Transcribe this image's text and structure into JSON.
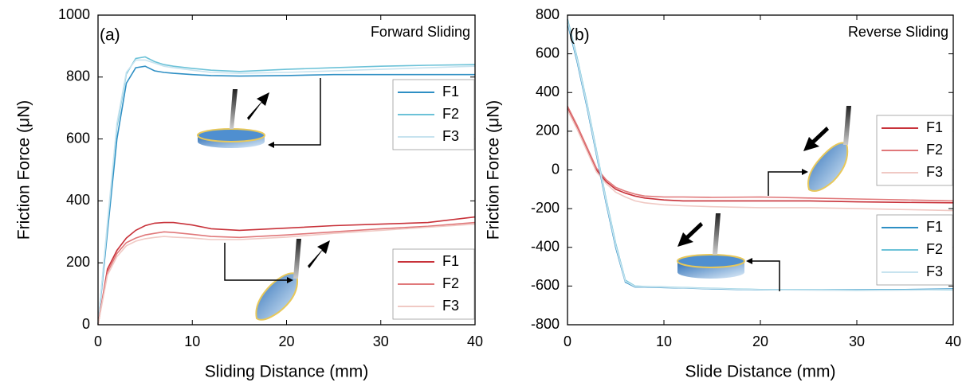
{
  "chart_data": [
    {
      "type": "line",
      "panel_label": "(a)",
      "title": "Forward Sliding",
      "x_label": "Sliding Distance (mm)",
      "y_label": "Friction Force (μN)",
      "xlim": [
        0,
        40
      ],
      "xticks": [
        0,
        10,
        20,
        30,
        40
      ],
      "ylim": [
        0,
        1000
      ],
      "yticks": [
        0,
        200,
        400,
        600,
        800,
        1000
      ],
      "x": [
        0,
        1,
        2,
        3,
        4,
        5,
        6,
        7,
        8,
        10,
        12,
        15,
        20,
        25,
        30,
        35,
        40
      ],
      "series": [
        {
          "name": "F1",
          "color": "#2e8fc4",
          "values": [
            0,
            300,
            600,
            780,
            830,
            835,
            820,
            815,
            812,
            808,
            805,
            803,
            805,
            808,
            808,
            808,
            808
          ]
        },
        {
          "name": "F2",
          "color": "#6cc2d8",
          "values": [
            0,
            320,
            640,
            810,
            860,
            865,
            850,
            840,
            835,
            828,
            822,
            818,
            825,
            830,
            835,
            838,
            840
          ]
        },
        {
          "name": "F3",
          "color": "#c7e3ef",
          "values": [
            0,
            330,
            650,
            815,
            855,
            855,
            845,
            835,
            830,
            822,
            815,
            812,
            815,
            820,
            825,
            830,
            835
          ]
        },
        {
          "name": "F1",
          "color": "#c8323a",
          "values": [
            0,
            180,
            240,
            280,
            305,
            320,
            328,
            330,
            330,
            322,
            310,
            305,
            312,
            320,
            325,
            330,
            348
          ]
        },
        {
          "name": "F2",
          "color": "#e0787a",
          "values": [
            0,
            170,
            230,
            265,
            280,
            290,
            295,
            300,
            298,
            292,
            285,
            282,
            290,
            300,
            310,
            318,
            330
          ]
        },
        {
          "name": "F3",
          "color": "#f0c9c4",
          "values": [
            0,
            160,
            220,
            255,
            270,
            278,
            282,
            285,
            283,
            280,
            275,
            275,
            283,
            295,
            305,
            315,
            325
          ]
        }
      ]
    },
    {
      "type": "line",
      "panel_label": "(b)",
      "title": "Reverse Sliding",
      "x_label": "Slide Distance (mm)",
      "y_label": "Friction Force (μN)",
      "xlim": [
        0,
        40
      ],
      "xticks": [
        0,
        10,
        20,
        30,
        40
      ],
      "ylim": [
        -800,
        800
      ],
      "yticks": [
        -800,
        -600,
        -400,
        -200,
        0,
        200,
        400,
        600,
        800
      ],
      "x": [
        0,
        1,
        2,
        3,
        4,
        5,
        6,
        7,
        8,
        10,
        12,
        15,
        20,
        25,
        30,
        35,
        40
      ],
      "series": [
        {
          "name": "F1",
          "color": "#c8323a",
          "values": [
            320,
            220,
            110,
            0,
            -60,
            -100,
            -120,
            -135,
            -145,
            -155,
            -160,
            -160,
            -160,
            -160,
            -165,
            -168,
            -170
          ]
        },
        {
          "name": "F2",
          "color": "#e0787a",
          "values": [
            330,
            230,
            120,
            10,
            -50,
            -90,
            -110,
            -125,
            -135,
            -140,
            -140,
            -142,
            -140,
            -145,
            -150,
            -155,
            -160
          ]
        },
        {
          "name": "F3",
          "color": "#f0c9c4",
          "values": [
            310,
            210,
            100,
            -10,
            -70,
            -115,
            -140,
            -160,
            -170,
            -180,
            -185,
            -190,
            -195,
            -195,
            -200,
            -205,
            -210
          ]
        },
        {
          "name": "F1",
          "color": "#2e8fc4",
          "values": [
            760,
            560,
            330,
            80,
            -170,
            -400,
            -580,
            -605,
            -605,
            -608,
            -610,
            -615,
            -620,
            -620,
            -620,
            -618,
            -615
          ]
        },
        {
          "name": "F2",
          "color": "#6cc2d8",
          "values": [
            780,
            580,
            350,
            100,
            -150,
            -380,
            -570,
            -600,
            -602,
            -605,
            -608,
            -612,
            -618,
            -620,
            -622,
            -620,
            -620
          ]
        },
        {
          "name": "F3",
          "color": "#c7e3ef",
          "values": [
            770,
            570,
            340,
            90,
            -160,
            -390,
            -575,
            -602,
            -603,
            -606,
            -609,
            -613,
            -619,
            -621,
            -623,
            -621,
            -618
          ]
        }
      ]
    }
  ]
}
